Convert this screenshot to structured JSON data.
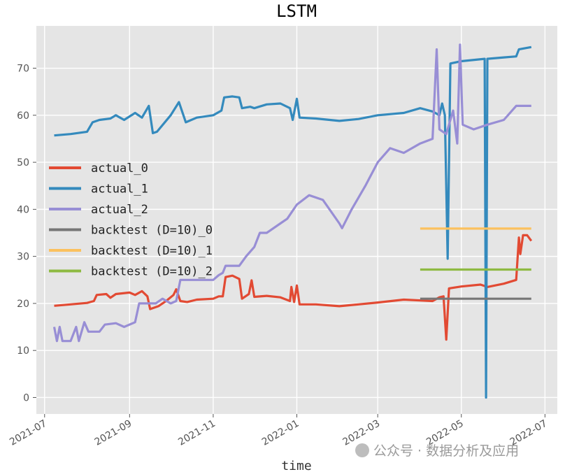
{
  "chart_data": {
    "type": "line",
    "title": "LSTM",
    "xlabel": "time",
    "ylabel": "",
    "xlim": [
      "2021-06-25",
      "2022-07-10"
    ],
    "ylim": [
      -3.5,
      79
    ],
    "grid": true,
    "legend_position": "center-left",
    "x_ticks": [
      "2021-07",
      "2021-09",
      "2021-11",
      "2022-01",
      "2022-03",
      "2022-05",
      "2022-07"
    ],
    "y_ticks": [
      0,
      10,
      20,
      30,
      40,
      50,
      60,
      70
    ],
    "series": [
      {
        "name": "actual_0",
        "color": "#E24A33",
        "points": [
          [
            "2021-07-08",
            19.5
          ],
          [
            "2021-07-20",
            19.8
          ],
          [
            "2021-08-01",
            20.1
          ],
          [
            "2021-08-06",
            20.5
          ],
          [
            "2021-08-08",
            21.8
          ],
          [
            "2021-08-15",
            22.0
          ],
          [
            "2021-08-18",
            21.2
          ],
          [
            "2021-08-22",
            22.0
          ],
          [
            "2021-09-01",
            22.3
          ],
          [
            "2021-09-05",
            21.8
          ],
          [
            "2021-09-10",
            22.6
          ],
          [
            "2021-09-14",
            21.5
          ],
          [
            "2021-09-16",
            18.8
          ],
          [
            "2021-09-22",
            19.4
          ],
          [
            "2021-09-28",
            20.6
          ],
          [
            "2021-10-03",
            21.8
          ],
          [
            "2021-10-05",
            23.0
          ],
          [
            "2021-10-08",
            20.5
          ],
          [
            "2021-10-13",
            20.3
          ],
          [
            "2021-10-20",
            20.8
          ],
          [
            "2021-11-01",
            21.0
          ],
          [
            "2021-11-05",
            21.5
          ],
          [
            "2021-11-08",
            21.5
          ],
          [
            "2021-11-10",
            25.6
          ],
          [
            "2021-11-15",
            25.9
          ],
          [
            "2021-11-20",
            25.2
          ],
          [
            "2021-11-22",
            21.0
          ],
          [
            "2021-11-27",
            22.0
          ],
          [
            "2021-11-29",
            24.9
          ],
          [
            "2021-12-01",
            21.4
          ],
          [
            "2021-12-10",
            21.6
          ],
          [
            "2021-12-20",
            21.3
          ],
          [
            "2021-12-27",
            20.5
          ],
          [
            "2021-12-28",
            23.5
          ],
          [
            "2021-12-30",
            20.3
          ],
          [
            "2022-01-01",
            23.8
          ],
          [
            "2022-01-03",
            19.8
          ],
          [
            "2022-01-15",
            19.8
          ],
          [
            "2022-02-01",
            19.4
          ],
          [
            "2022-02-15",
            19.8
          ],
          [
            "2022-03-01",
            20.2
          ],
          [
            "2022-03-20",
            20.8
          ],
          [
            "2022-04-10",
            20.5
          ],
          [
            "2022-04-15",
            21.3
          ],
          [
            "2022-04-18",
            21.5
          ],
          [
            "2022-04-20",
            12.3
          ],
          [
            "2022-04-22",
            23.2
          ],
          [
            "2022-05-01",
            23.6
          ],
          [
            "2022-05-15",
            24.0
          ],
          [
            "2022-05-20",
            23.5
          ],
          [
            "2022-06-01",
            24.2
          ],
          [
            "2022-06-10",
            25.0
          ],
          [
            "2022-06-12",
            34.0
          ],
          [
            "2022-06-13",
            30.5
          ],
          [
            "2022-06-15",
            34.5
          ],
          [
            "2022-06-18",
            34.5
          ],
          [
            "2022-06-21",
            33.3
          ]
        ]
      },
      {
        "name": "actual_1",
        "color": "#348ABD",
        "points": [
          [
            "2021-07-08",
            55.7
          ],
          [
            "2021-07-20",
            56.0
          ],
          [
            "2021-08-01",
            56.5
          ],
          [
            "2021-08-05",
            58.5
          ],
          [
            "2021-08-10",
            59.0
          ],
          [
            "2021-08-18",
            59.3
          ],
          [
            "2021-08-22",
            60.0
          ],
          [
            "2021-08-28",
            59.0
          ],
          [
            "2021-09-05",
            60.5
          ],
          [
            "2021-09-10",
            59.5
          ],
          [
            "2021-09-15",
            62.0
          ],
          [
            "2021-09-18",
            56.2
          ],
          [
            "2021-09-21",
            56.5
          ],
          [
            "2021-10-01",
            60.0
          ],
          [
            "2021-10-07",
            62.8
          ],
          [
            "2021-10-12",
            58.5
          ],
          [
            "2021-10-20",
            59.5
          ],
          [
            "2021-11-01",
            60.0
          ],
          [
            "2021-11-07",
            61.0
          ],
          [
            "2021-11-09",
            63.8
          ],
          [
            "2021-11-15",
            64.0
          ],
          [
            "2021-11-20",
            63.8
          ],
          [
            "2021-11-22",
            61.5
          ],
          [
            "2021-11-28",
            61.8
          ],
          [
            "2021-12-01",
            61.5
          ],
          [
            "2021-12-10",
            62.3
          ],
          [
            "2021-12-20",
            62.5
          ],
          [
            "2021-12-27",
            61.5
          ],
          [
            "2021-12-29",
            59.0
          ],
          [
            "2022-01-01",
            63.5
          ],
          [
            "2022-01-03",
            59.5
          ],
          [
            "2022-01-15",
            59.3
          ],
          [
            "2022-02-01",
            58.8
          ],
          [
            "2022-02-15",
            59.2
          ],
          [
            "2022-03-01",
            60.0
          ],
          [
            "2022-03-20",
            60.5
          ],
          [
            "2022-04-01",
            61.5
          ],
          [
            "2022-04-10",
            60.8
          ],
          [
            "2022-04-15",
            60.0
          ],
          [
            "2022-04-17",
            62.5
          ],
          [
            "2022-04-19",
            60.0
          ],
          [
            "2022-04-21",
            29.5
          ],
          [
            "2022-04-23",
            71.0
          ],
          [
            "2022-05-01",
            71.5
          ],
          [
            "2022-05-18",
            72.0
          ],
          [
            "2022-05-19",
            0.0
          ],
          [
            "2022-05-20",
            72.0
          ],
          [
            "2022-06-01",
            72.3
          ],
          [
            "2022-06-10",
            72.5
          ],
          [
            "2022-06-12",
            74.0
          ],
          [
            "2022-06-21",
            74.5
          ]
        ]
      },
      {
        "name": "actual_2",
        "color": "#988ED5",
        "points": [
          [
            "2021-07-08",
            15.0
          ],
          [
            "2021-07-10",
            12.0
          ],
          [
            "2021-07-12",
            15.0
          ],
          [
            "2021-07-14",
            12.0
          ],
          [
            "2021-07-20",
            12.0
          ],
          [
            "2021-07-24",
            15.0
          ],
          [
            "2021-07-26",
            12.0
          ],
          [
            "2021-07-30",
            16.0
          ],
          [
            "2021-08-02",
            14.0
          ],
          [
            "2021-08-10",
            14.0
          ],
          [
            "2021-08-14",
            15.5
          ],
          [
            "2021-08-22",
            15.8
          ],
          [
            "2021-08-28",
            15.0
          ],
          [
            "2021-09-05",
            16.0
          ],
          [
            "2021-09-08",
            20.0
          ],
          [
            "2021-09-20",
            20.0
          ],
          [
            "2021-09-25",
            21.0
          ],
          [
            "2021-10-01",
            20.0
          ],
          [
            "2021-10-05",
            20.5
          ],
          [
            "2021-10-08",
            25.0
          ],
          [
            "2021-10-20",
            25.0
          ],
          [
            "2021-11-01",
            25.0
          ],
          [
            "2021-11-05",
            26.0
          ],
          [
            "2021-11-08",
            26.5
          ],
          [
            "2021-11-10",
            28.0
          ],
          [
            "2021-11-20",
            28.0
          ],
          [
            "2021-11-25",
            30.0
          ],
          [
            "2021-12-01",
            32.0
          ],
          [
            "2021-12-05",
            35.0
          ],
          [
            "2021-12-10",
            35.0
          ],
          [
            "2021-12-20",
            37.0
          ],
          [
            "2021-12-25",
            38.0
          ],
          [
            "2022-01-01",
            41.0
          ],
          [
            "2022-01-10",
            43.0
          ],
          [
            "2022-01-20",
            42.0
          ],
          [
            "2022-02-01",
            37.0
          ],
          [
            "2022-02-03",
            36.0
          ],
          [
            "2022-02-10",
            40.0
          ],
          [
            "2022-02-20",
            45.0
          ],
          [
            "2022-03-01",
            50.0
          ],
          [
            "2022-03-10",
            53.0
          ],
          [
            "2022-03-20",
            52.0
          ],
          [
            "2022-04-01",
            54.0
          ],
          [
            "2022-04-10",
            55.0
          ],
          [
            "2022-04-13",
            74.0
          ],
          [
            "2022-04-15",
            57.0
          ],
          [
            "2022-04-20",
            56.0
          ],
          [
            "2022-04-25",
            61.0
          ],
          [
            "2022-04-28",
            54.0
          ],
          [
            "2022-04-30",
            75.0
          ],
          [
            "2022-05-02",
            58.0
          ],
          [
            "2022-05-10",
            57.0
          ],
          [
            "2022-05-20",
            58.0
          ],
          [
            "2022-06-01",
            59.0
          ],
          [
            "2022-06-10",
            62.0
          ],
          [
            "2022-06-21",
            62.0
          ]
        ]
      },
      {
        "name": "backtest (D=10)_0",
        "color": "#777777",
        "points": [
          [
            "2022-04-01",
            21.0
          ],
          [
            "2022-06-21",
            21.0
          ]
        ]
      },
      {
        "name": "backtest (D=10)_1",
        "color": "#FBC15E",
        "points": [
          [
            "2022-04-01",
            35.9
          ],
          [
            "2022-06-21",
            35.9
          ]
        ]
      },
      {
        "name": "backtest (D=10)_2",
        "color": "#8EBA42",
        "points": [
          [
            "2022-04-01",
            27.2
          ],
          [
            "2022-06-21",
            27.2
          ]
        ]
      }
    ]
  },
  "watermark": {
    "text": "公众号 · 数据分析及应用"
  }
}
